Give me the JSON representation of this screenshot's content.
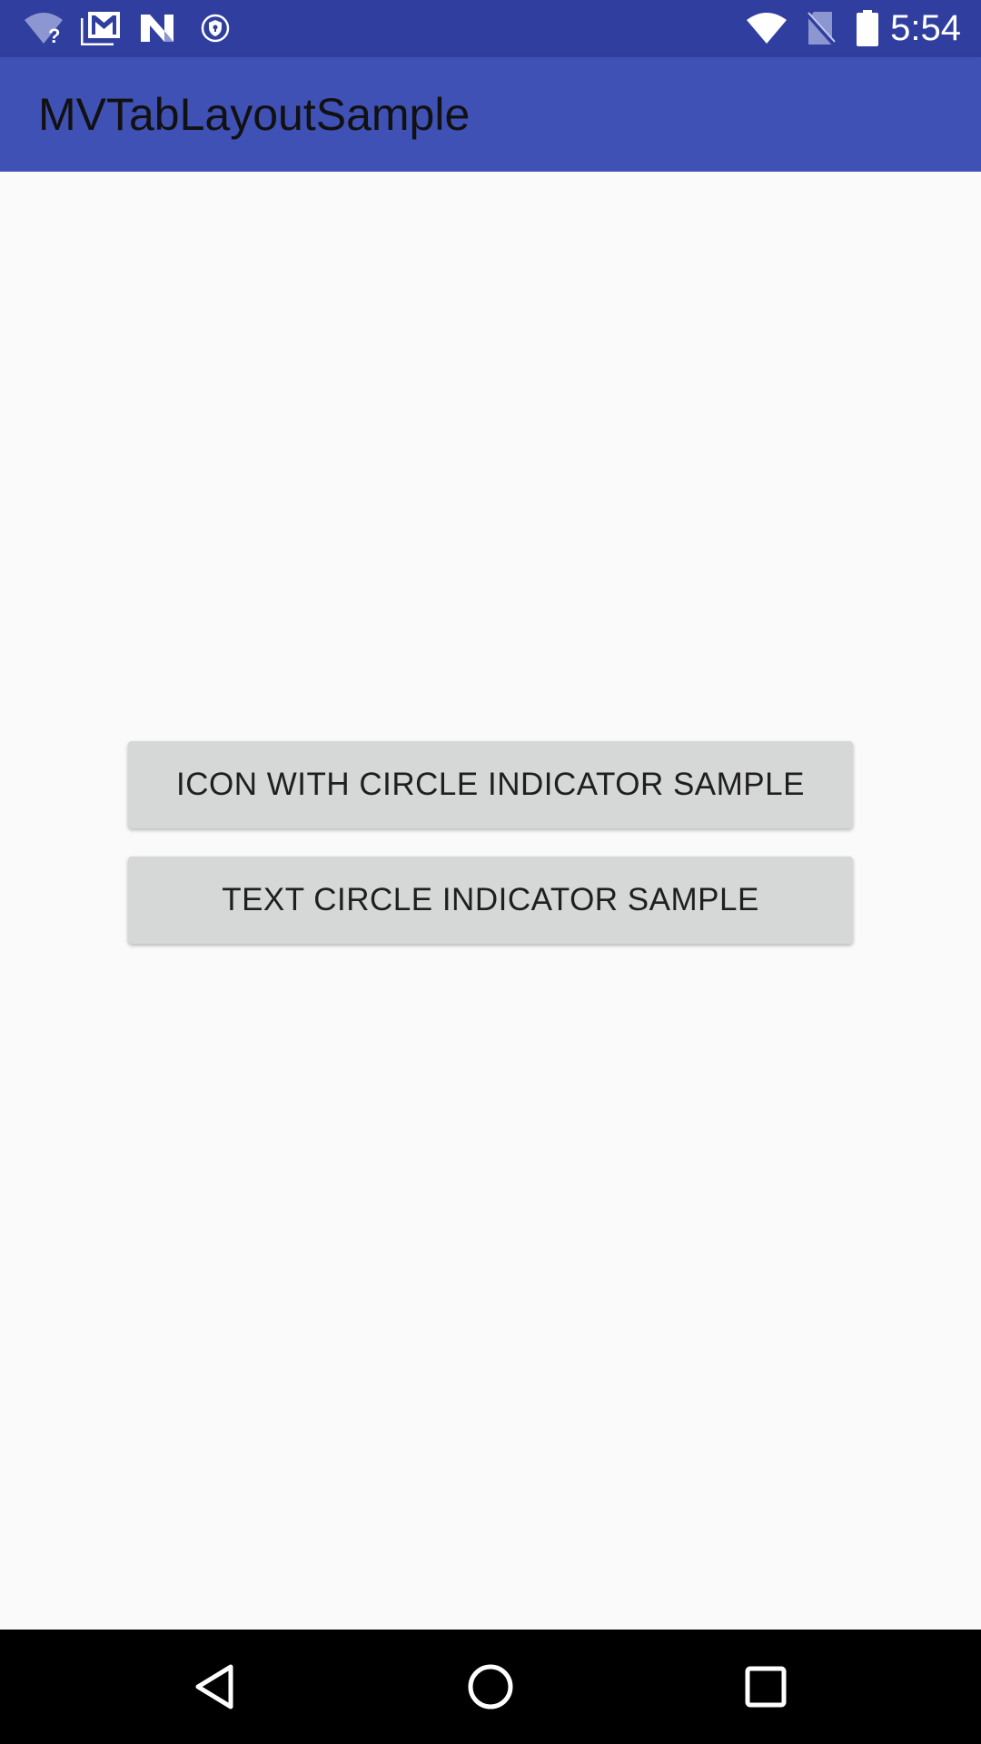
{
  "status_bar": {
    "time": "5:54",
    "icons": [
      "wifi-unknown-icon",
      "gmail-icon",
      "n-icon",
      "shield-icon",
      "wifi-icon",
      "no-sim-icon",
      "battery-icon"
    ],
    "background_color": "#303f9f"
  },
  "app_bar": {
    "title": "MVTabLayoutSample",
    "background_color": "#3f51b5"
  },
  "buttons": [
    {
      "label": "ICON WITH CIRCLE INDICATOR SAMPLE"
    },
    {
      "label": "TEXT CIRCLE INDICATOR SAMPLE"
    }
  ],
  "nav_bar": {
    "icons": [
      "back-icon",
      "home-icon",
      "recents-icon"
    ]
  }
}
